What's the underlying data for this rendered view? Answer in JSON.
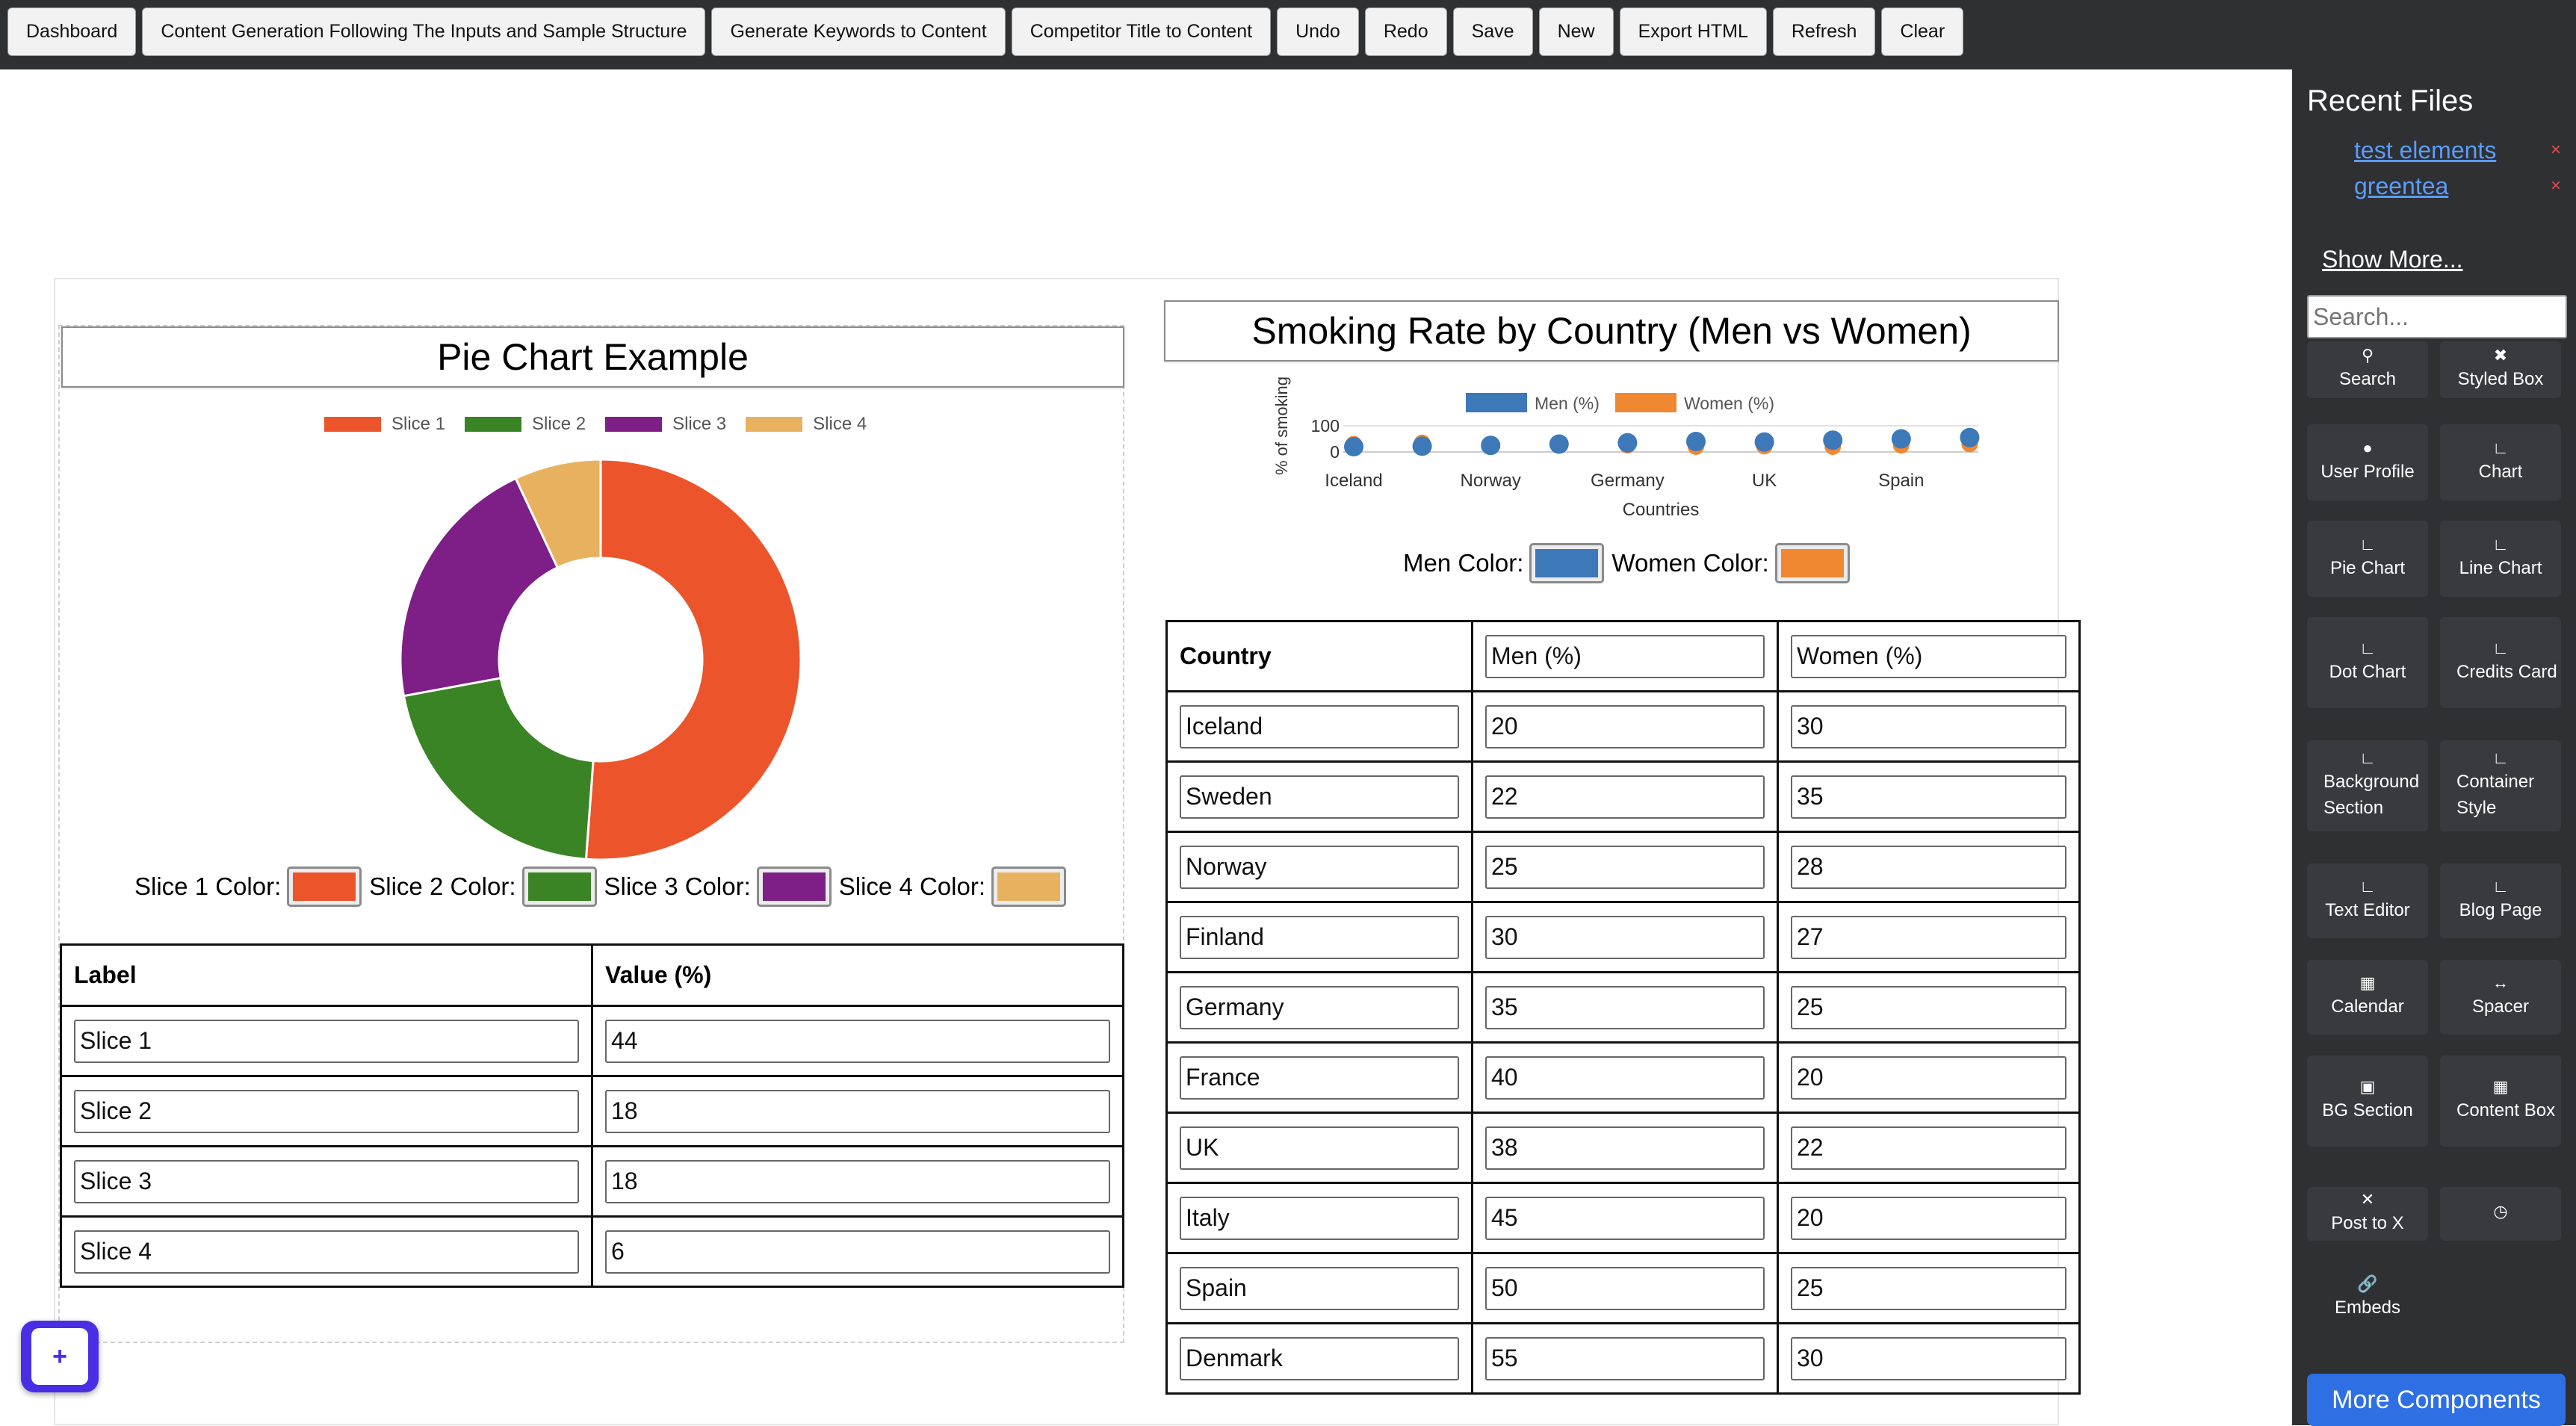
{
  "toolbar": {
    "buttons": [
      "Dashboard",
      "Content Generation Following The Inputs and Sample Structure",
      "Generate Keywords to Content",
      "Competitor Title to Content",
      "Undo",
      "Redo",
      "Save",
      "New",
      "Export HTML",
      "Refresh",
      "Clear"
    ]
  },
  "pie_section": {
    "title": "Pie Chart Example",
    "color_labels": [
      "Slice 1 Color:",
      "Slice 2 Color:",
      "Slice 3 Color:",
      "Slice 4 Color:"
    ],
    "table": {
      "headers": [
        "Label",
        "Value (%)"
      ],
      "rows": [
        [
          "Slice 1",
          "44"
        ],
        [
          "Slice 2",
          "18"
        ],
        [
          "Slice 3",
          "18"
        ],
        [
          "Slice 4",
          "6"
        ]
      ]
    }
  },
  "bar_section": {
    "title": "Smoking Rate by Country (Men vs Women)",
    "men_color_label": "Men Color:",
    "women_color_label": "Women Color:",
    "table": {
      "headers": [
        "Country",
        "Men (%)",
        "Women (%)"
      ],
      "rows": [
        [
          "Iceland",
          "20",
          "30"
        ],
        [
          "Sweden",
          "22",
          "35"
        ],
        [
          "Norway",
          "25",
          "28"
        ],
        [
          "Finland",
          "30",
          "27"
        ],
        [
          "Germany",
          "35",
          "25"
        ],
        [
          "France",
          "40",
          "20"
        ],
        [
          "UK",
          "38",
          "22"
        ],
        [
          "Italy",
          "45",
          "20"
        ],
        [
          "Spain",
          "50",
          "25"
        ],
        [
          "Denmark",
          "55",
          "30"
        ]
      ]
    }
  },
  "chart_data": [
    {
      "type": "pie",
      "categories": [
        "Slice 1",
        "Slice 2",
        "Slice 3",
        "Slice 4"
      ],
      "values": [
        44,
        18,
        18,
        6
      ],
      "colors": [
        "#ec552b",
        "#3a8425",
        "#7d1f87",
        "#e8b160"
      ],
      "legend": "top"
    },
    {
      "type": "scatter",
      "categories": [
        "Iceland",
        "Sweden",
        "Norway",
        "Finland",
        "Germany",
        "France",
        "UK",
        "Italy",
        "Spain",
        "Denmark"
      ],
      "tick_labels": [
        "Iceland",
        "Norway",
        "Germany",
        "UK",
        "Spain"
      ],
      "series": [
        {
          "name": "Men (%)",
          "values": [
            20,
            22,
            25,
            30,
            35,
            40,
            38,
            45,
            50,
            55
          ],
          "color": "#3d78b9"
        },
        {
          "name": "Women (%)",
          "values": [
            30,
            35,
            28,
            27,
            25,
            20,
            22,
            20,
            25,
            30
          ],
          "color": "#f08731"
        }
      ],
      "xlabel": "Countries",
      "ylabel": "% of smoking",
      "yticks": [
        "100",
        "0"
      ],
      "ylim": [
        0,
        100
      ],
      "legend": "top"
    }
  ],
  "sidebar": {
    "recent_title": "Recent Files",
    "recent_files": [
      "test elements",
      "greentea"
    ],
    "close_glyph": "×",
    "show_more": "Show More...",
    "search_placeholder": "Search...",
    "tiles": [
      "Search",
      "Styled Box",
      "User Profile",
      "Chart",
      "Pie Chart",
      "Line Chart",
      "Dot Chart",
      "Credits Card",
      "Background Section",
      "Container Style",
      "Text Editor",
      "Blog Page",
      "Calendar",
      "Spacer",
      "BG Section",
      "Content Box",
      "Post to X",
      "Embeds"
    ],
    "more_components": "More Components"
  },
  "fab": {
    "label": "+"
  }
}
